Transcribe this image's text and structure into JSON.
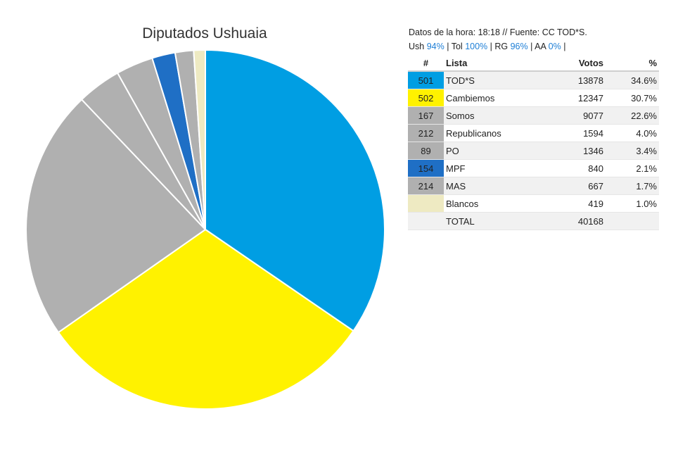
{
  "chart_data": {
    "type": "pie",
    "title": "Diputados Ushuaia",
    "slices": [
      {
        "label": "TOD*S",
        "value": 13878,
        "color": "#009ee3"
      },
      {
        "label": "Cambiemos",
        "value": 12347,
        "color": "#fff200"
      },
      {
        "label": "Somos",
        "value": 9077,
        "color": "#b0b0b0"
      },
      {
        "label": "Republicanos",
        "value": 1594,
        "color": "#b0b0b0"
      },
      {
        "label": "PO",
        "value": 1346,
        "color": "#b0b0b0"
      },
      {
        "label": "MPF",
        "value": 840,
        "color": "#1f6fc5"
      },
      {
        "label": "MAS",
        "value": 667,
        "color": "#b0b0b0"
      },
      {
        "label": "Blancos",
        "value": 419,
        "color": "#eeeac2"
      }
    ]
  },
  "info": {
    "line1": "Datos de la hora: 18:18 // Fuente: CC TOD*S.",
    "regions": [
      {
        "label": "Ush",
        "pct": "94%"
      },
      {
        "label": "Tol",
        "pct": "100%"
      },
      {
        "label": "RG",
        "pct": "96%"
      },
      {
        "label": "AA",
        "pct": "0%"
      }
    ]
  },
  "table": {
    "headers": {
      "num": "#",
      "lista": "Lista",
      "votos": "Votos",
      "pct": "%"
    },
    "rows": [
      {
        "num": "501",
        "lista": "TOD*S",
        "votos": "13878",
        "pct": "34.6%",
        "color": "#009ee3"
      },
      {
        "num": "502",
        "lista": "Cambiemos",
        "votos": "12347",
        "pct": "30.7%",
        "color": "#fff200"
      },
      {
        "num": "167",
        "lista": "Somos",
        "votos": "9077",
        "pct": "22.6%",
        "color": "#b0b0b0"
      },
      {
        "num": "212",
        "lista": "Republicanos",
        "votos": "1594",
        "pct": "4.0%",
        "color": "#b0b0b0"
      },
      {
        "num": "89",
        "lista": "PO",
        "votos": "1346",
        "pct": "3.4%",
        "color": "#b0b0b0"
      },
      {
        "num": "154",
        "lista": "MPF",
        "votos": "840",
        "pct": "2.1%",
        "color": "#1f6fc5"
      },
      {
        "num": "214",
        "lista": "MAS",
        "votos": "667",
        "pct": "1.7%",
        "color": "#b0b0b0"
      },
      {
        "num": "",
        "lista": "Blancos",
        "votos": "419",
        "pct": "1.0%",
        "color": "#eeeac2"
      }
    ],
    "total": {
      "label": "TOTAL",
      "votos": "40168"
    }
  }
}
